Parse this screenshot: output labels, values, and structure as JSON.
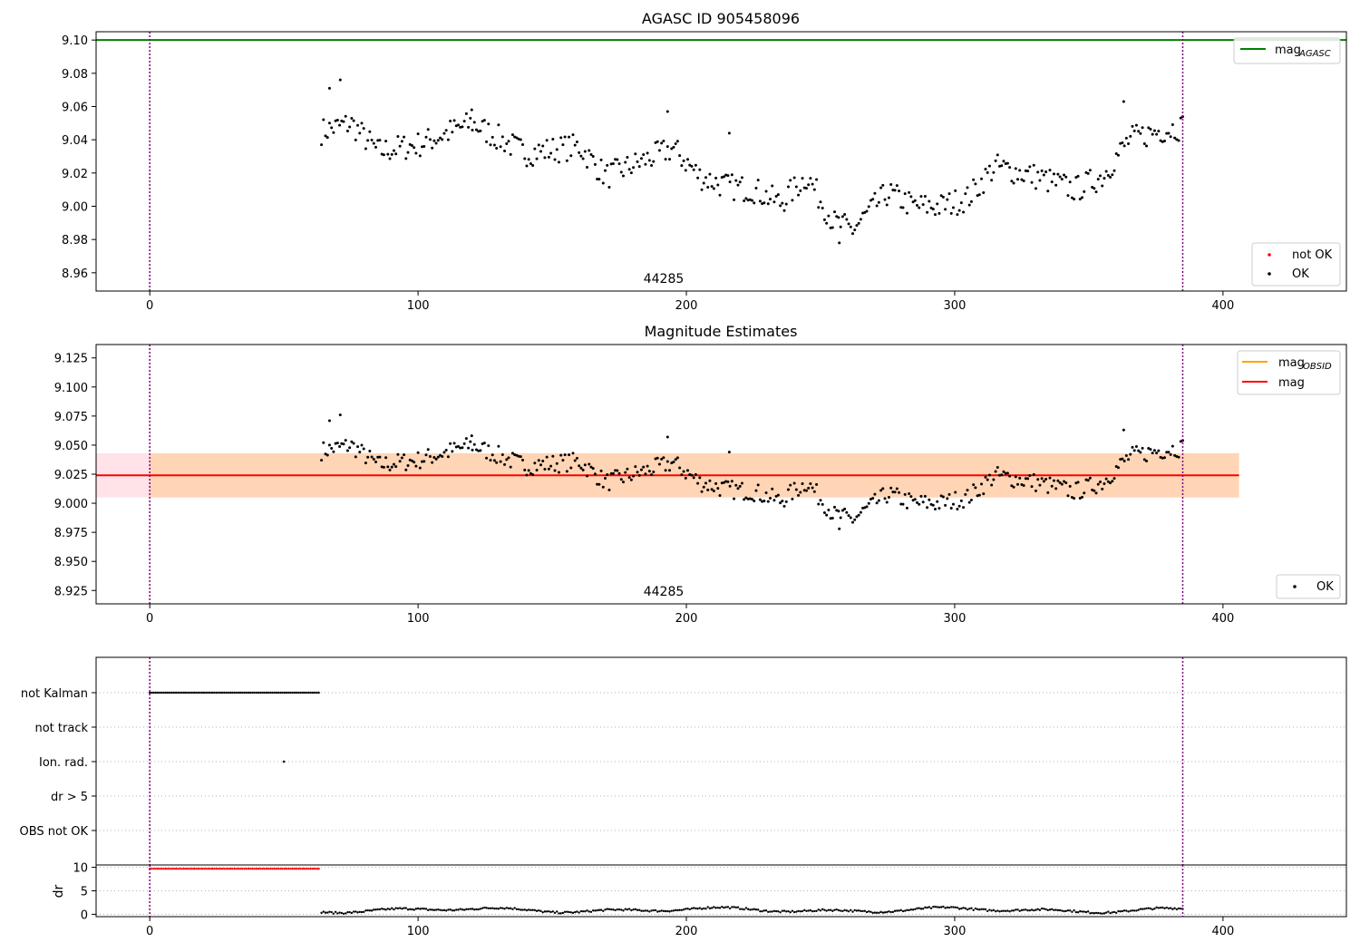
{
  "chart_data": [
    {
      "type": "scatter",
      "title": "AGASC ID 905458096",
      "xlim": [
        -20,
        446
      ],
      "ylim": [
        8.949,
        9.105
      ],
      "xticks": [
        "0",
        "100",
        "200",
        "300",
        "400"
      ],
      "yticks": [
        "8.96",
        "8.98",
        "9.00",
        "9.02",
        "9.04",
        "9.06",
        "9.08",
        "9.10"
      ],
      "annotation": "44285",
      "vlines": [
        0,
        385
      ],
      "hline": {
        "name": "mag",
        "subscript": "AGASC",
        "value": 9.1,
        "color": "#008000"
      },
      "legend_lines": [
        {
          "name": "mag",
          "subscript": "AGASC",
          "color": "#008000"
        }
      ],
      "legend_points": [
        {
          "name": "not OK",
          "color": "#ff0000"
        },
        {
          "name": "OK",
          "color": "#000000"
        }
      ],
      "series": [
        {
          "name": "OK",
          "start": 64,
          "end": 385
        }
      ]
    },
    {
      "type": "scatter",
      "title": "Magnitude Estimates",
      "xlim": [
        -20,
        446
      ],
      "ylim": [
        8.9135,
        9.1365
      ],
      "xticks": [
        "0",
        "100",
        "200",
        "300",
        "400"
      ],
      "yticks": [
        "8.925",
        "8.950",
        "8.975",
        "9.000",
        "9.025",
        "9.050",
        "9.075",
        "9.100",
        "9.125"
      ],
      "annotation": "44285",
      "vlines": [
        0,
        385
      ],
      "mag": {
        "value": 9.024,
        "band": [
          9.005,
          9.043
        ],
        "band_x": [
          -20,
          406
        ],
        "obsid_band_x": [
          0,
          406
        ]
      },
      "legend_lines": [
        {
          "name": "mag",
          "subscript": "OBSID",
          "color": "#ffa500"
        },
        {
          "name": "mag",
          "subscript": "",
          "color": "#ff0000"
        }
      ],
      "legend_points": [
        {
          "name": "OK",
          "color": "#000000"
        }
      ],
      "series": [
        {
          "name": "OK",
          "start": 64,
          "end": 385
        }
      ]
    },
    {
      "type": "scatter",
      "xlim": [
        -20,
        446
      ],
      "flags": [
        "not Kalman",
        "not track",
        "Ion. rad.",
        "dr > 5",
        "OBS not OK"
      ],
      "flag_points": {
        "not Kalman": [
          0,
          63
        ],
        "Ion. rad.": [
          50
        ]
      },
      "vlines": [
        0,
        385
      ]
    },
    {
      "type": "scatter",
      "xlim": [
        -20,
        446
      ],
      "ylim": [
        -0.5,
        10.5
      ],
      "ylabel": "dr",
      "xticks": [
        "0",
        "100",
        "200",
        "300",
        "400"
      ],
      "yticks": [
        "0",
        "5",
        "10"
      ],
      "red_segment": {
        "from": 0,
        "to": 63,
        "value": 9.7
      },
      "series": [
        {
          "name": "dr",
          "start": 64,
          "end": 385
        }
      ],
      "vlines": [
        0,
        385
      ]
    }
  ]
}
